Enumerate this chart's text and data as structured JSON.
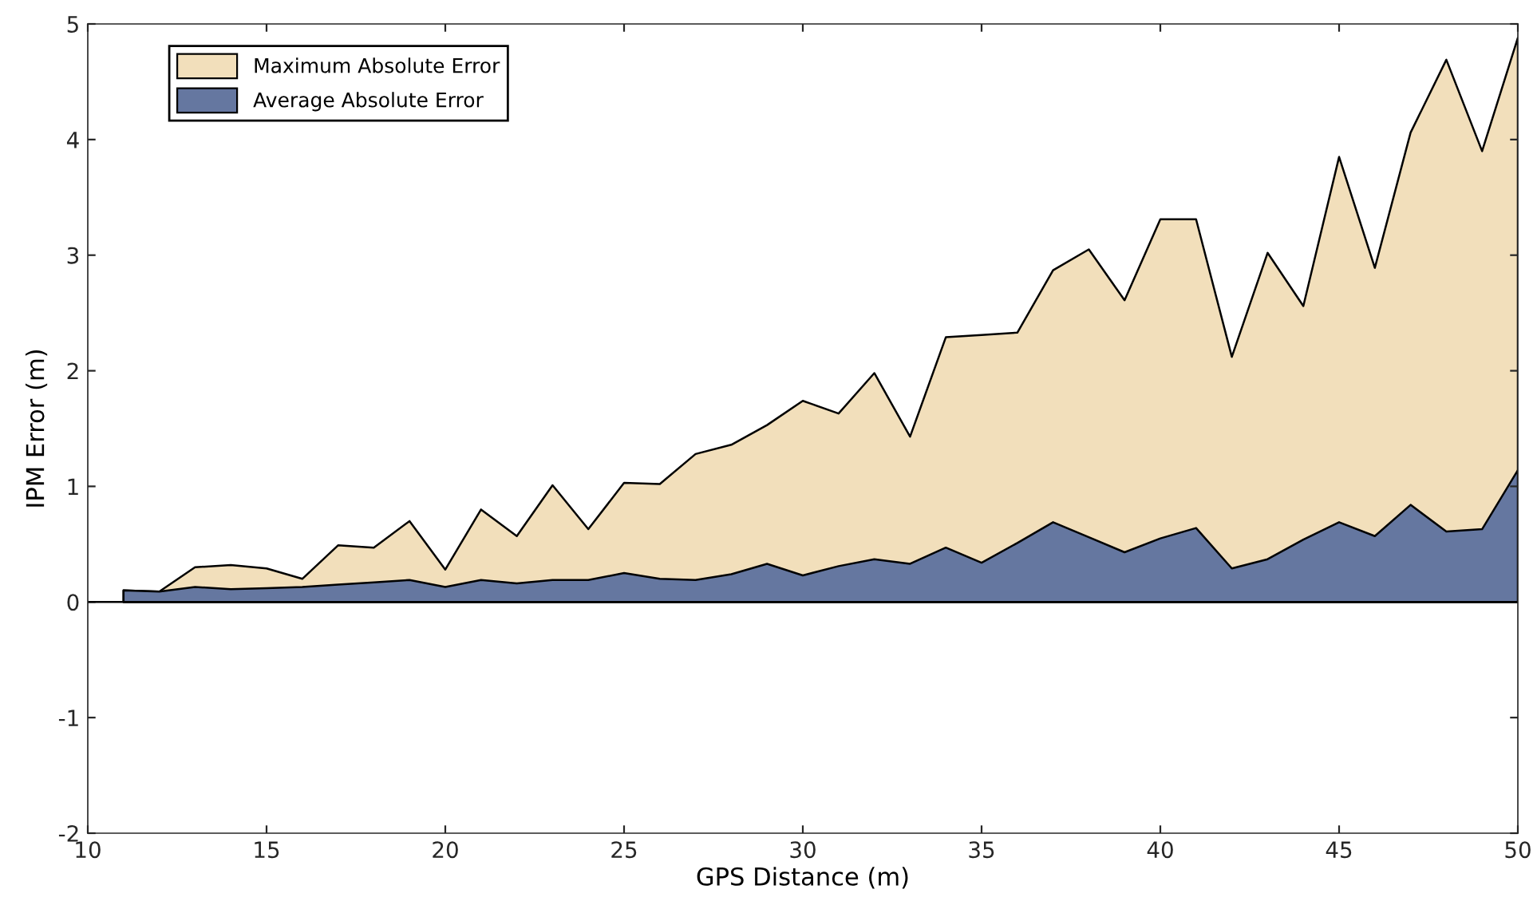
{
  "chart_data": {
    "type": "area",
    "xlabel": "GPS Distance (m)",
    "ylabel": "IPM Error (m)",
    "x": [
      11,
      12,
      13,
      14,
      15,
      16,
      17,
      18,
      19,
      20,
      21,
      22,
      23,
      24,
      25,
      26,
      27,
      28,
      29,
      30,
      31,
      32,
      33,
      34,
      35,
      36,
      37,
      38,
      39,
      40,
      41,
      42,
      43,
      44,
      45,
      46,
      47,
      48,
      49,
      50
    ],
    "series": [
      {
        "name": "Maximum Absolute Error",
        "color": "#f2dfbb",
        "values": [
          0.1,
          0.09,
          0.3,
          0.32,
          0.29,
          0.2,
          0.49,
          0.47,
          0.7,
          0.28,
          0.8,
          0.57,
          1.01,
          0.63,
          1.03,
          1.02,
          1.28,
          1.36,
          1.53,
          1.74,
          1.63,
          1.98,
          1.43,
          2.29,
          2.31,
          2.33,
          2.87,
          3.05,
          2.61,
          3.31,
          3.31,
          2.12,
          3.02,
          2.56,
          3.85,
          2.89,
          4.06,
          4.69,
          3.9,
          4.88
        ]
      },
      {
        "name": "Average Absolute Error",
        "color": "#6577a0",
        "values": [
          0.1,
          0.09,
          0.13,
          0.11,
          0.12,
          0.13,
          0.15,
          0.17,
          0.19,
          0.13,
          0.19,
          0.16,
          0.19,
          0.19,
          0.25,
          0.2,
          0.19,
          0.24,
          0.33,
          0.23,
          0.31,
          0.37,
          0.33,
          0.47,
          0.34,
          0.51,
          0.69,
          0.56,
          0.43,
          0.55,
          0.64,
          0.29,
          0.37,
          0.54,
          0.69,
          0.57,
          0.84,
          0.61,
          0.63,
          1.14
        ]
      }
    ],
    "xlim": [
      10,
      50
    ],
    "xticks": [
      10,
      15,
      20,
      25,
      30,
      35,
      40,
      45,
      50
    ],
    "ylim": [
      -2,
      5
    ],
    "yticks": [
      -2,
      -1,
      0,
      1,
      2,
      3,
      4,
      5
    ],
    "ref_lines": [
      {
        "axis": "y",
        "value": 0,
        "color": "#000000"
      }
    ],
    "legend": "top left"
  }
}
